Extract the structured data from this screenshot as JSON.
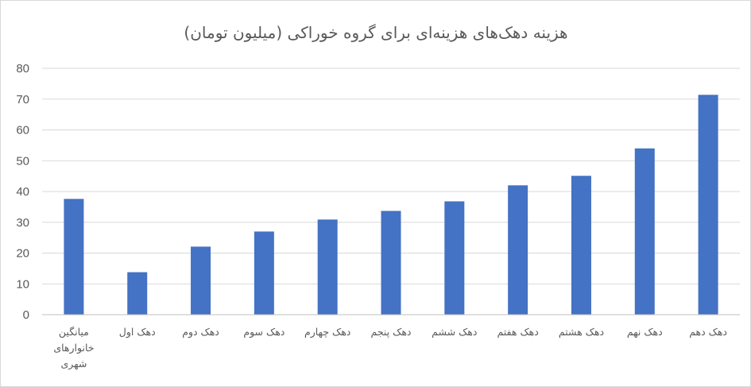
{
  "chart_data": {
    "type": "bar",
    "title": "هزینه دهک‌های هزینه‌ای برای گروه خوراکی (میلیون تومان)",
    "xlabel": "",
    "ylabel": "",
    "ylim": [
      0,
      80
    ],
    "y_ticks": [
      "0",
      "10",
      "20",
      "30",
      "40",
      "50",
      "60",
      "70",
      "80"
    ],
    "grid": true,
    "legend": "none",
    "bar_color": "#4472C4",
    "categories": [
      [
        "میانگین",
        "خانوارهای",
        "شهری"
      ],
      [
        "دهک اول"
      ],
      [
        "دهک دوم"
      ],
      [
        "دهک سوم"
      ],
      [
        "دهک چهارم"
      ],
      [
        "دهک پنجم"
      ],
      [
        "دهک ششم"
      ],
      [
        "دهک هفتم"
      ],
      [
        "دهک هشتم"
      ],
      [
        "دهک نهم"
      ],
      [
        "دهک دهم"
      ]
    ],
    "values": [
      37.6,
      13.8,
      22.1,
      27.0,
      30.9,
      33.7,
      36.8,
      42.0,
      45.1,
      54.0,
      71.4
    ]
  }
}
